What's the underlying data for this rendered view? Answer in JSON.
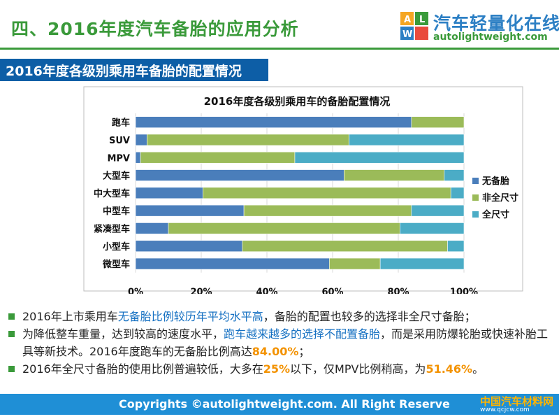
{
  "header": {
    "title": "四、2016年度汽车备胎的应用分析",
    "logo_cn": "汽车轻量化在线",
    "logo_en": "autolightweight.com"
  },
  "section": {
    "title": "2016年度各级别乘用车备胎的配置情况"
  },
  "chart_data": {
    "type": "bar",
    "orientation": "horizontal",
    "stacked": "percent",
    "title": "2016年度各级别乘用车的备胎配置情况",
    "categories": [
      "跑车",
      "SUV",
      "MPV",
      "大型车",
      "中大型车",
      "中型车",
      "紧凑型车",
      "小型车",
      "微型车"
    ],
    "series": [
      {
        "name": "无备胎",
        "color": "#4a7ebb",
        "values": [
          84.0,
          3.5,
          1.5,
          63.5,
          20.5,
          33.0,
          10.0,
          32.5,
          59.0
        ]
      },
      {
        "name": "非全尺寸",
        "color": "#9bbb59",
        "values": [
          16.0,
          61.5,
          47.0,
          30.5,
          75.5,
          51.0,
          70.5,
          62.5,
          15.5
        ]
      },
      {
        "name": "全尺寸",
        "color": "#4bacc6",
        "values": [
          0.0,
          35.0,
          51.5,
          6.0,
          4.0,
          16.0,
          19.5,
          5.0,
          25.5
        ]
      }
    ],
    "xlim": [
      0,
      100
    ],
    "xticks": [
      "0%",
      "20%",
      "40%",
      "60%",
      "80%",
      "100%"
    ],
    "legend": "right"
  },
  "bullets": [
    {
      "a": "2016年上市乘用车",
      "b": "无备胎比例较历年平均水平高",
      "c": "，备胎的配置也较多的选择非全尺寸备胎；"
    },
    {
      "a": "为降低整车重量，达到较高的速度水平，",
      "b": "跑车越来越多的选择不配置备胎",
      "c": "，而是采用防爆轮胎或快速补胎工具等新技术。2016年度跑车的无备胎比例高达",
      "d": "84.00%",
      "e": "；"
    },
    {
      "a": "2016年全尺寸备胎的使用比例普遍较低，大多在",
      "b": "25%",
      "c": "以下，仅MPV比例稍高，为",
      "d": "51.46%",
      "e": "。"
    }
  ],
  "footer": {
    "copyright": "Copyrights ©autolightweight.com. All Right Reserve",
    "watermark": "中国汽车材料网",
    "watermark_url": "www.qcjcw.com"
  },
  "colors": {
    "green": "#3a9a3a",
    "blue": "#0d5ea6",
    "footer": "#1f8fd6"
  }
}
